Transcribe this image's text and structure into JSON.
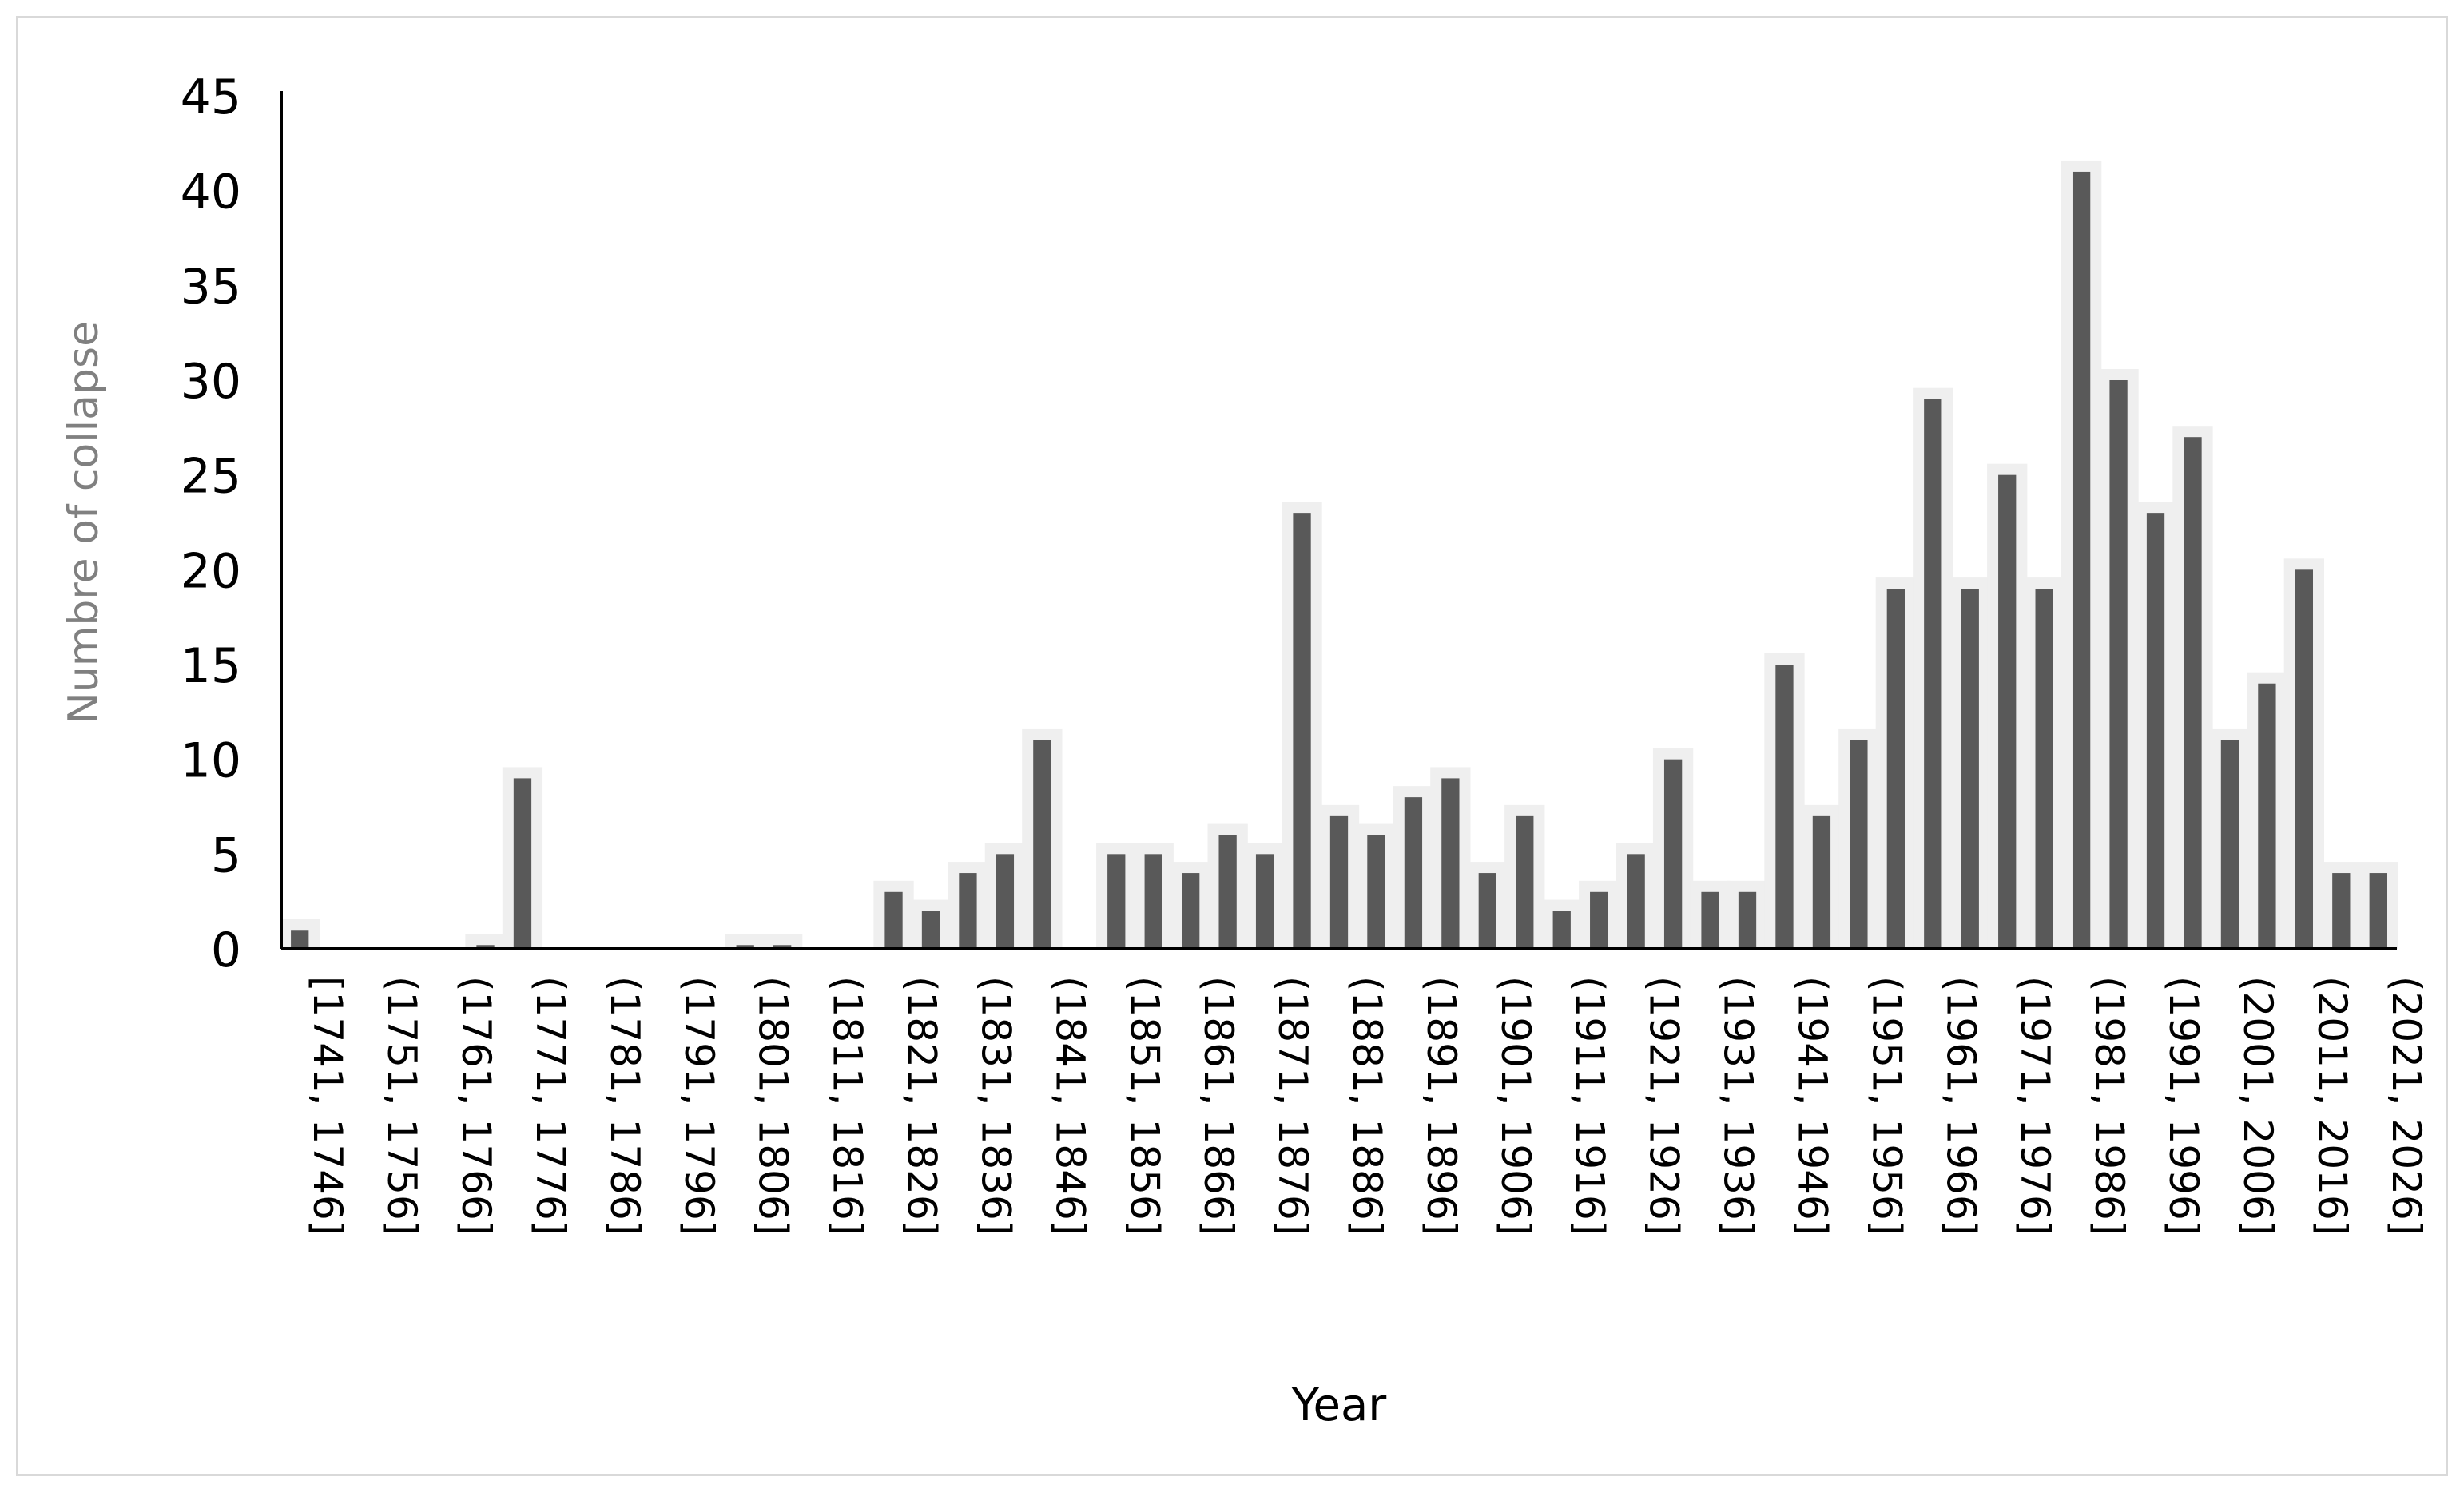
{
  "chart_data": {
    "type": "bar",
    "title": "",
    "xlabel": "Year",
    "ylabel": "Numbre of collapse",
    "ylim": [
      0,
      45
    ],
    "yticks": [
      0,
      5,
      10,
      15,
      20,
      25,
      30,
      35,
      40,
      45
    ],
    "grid": false,
    "legend": "none",
    "categories": [
      "[1741, 1746]",
      "(1746, 1751]",
      "(1751, 1756]",
      "(1756, 1761]",
      "(1761, 1766]",
      "(1766, 1771]",
      "(1771, 1776]",
      "(1776, 1781]",
      "(1781, 1786]",
      "(1786, 1791]",
      "(1791, 1796]",
      "(1796, 1801]",
      "(1801, 1806]",
      "(1806, 1811]",
      "(1811, 1816]",
      "(1816, 1821]",
      "(1821, 1826]",
      "(1826, 1831]",
      "(1831, 1836]",
      "(1836, 1841]",
      "(1841, 1846]",
      "(1846, 1851]",
      "(1851, 1856]",
      "(1856, 1861]",
      "(1861, 1866]",
      "(1866, 1871]",
      "(1871, 1876]",
      "(1876, 1881]",
      "(1881, 1886]",
      "(1886, 1891]",
      "(1891, 1896]",
      "(1896, 1901]",
      "(1901, 1906]",
      "(1906, 1911]",
      "(1911, 1916]",
      "(1916, 1921]",
      "(1921, 1926]",
      "(1926, 1931]",
      "(1931, 1936]",
      "(1936, 1941]",
      "(1941, 1946]",
      "(1946, 1951]",
      "(1951, 1956]",
      "(1956, 1961]",
      "(1961, 1966]",
      "(1966, 1971]",
      "(1971, 1976]",
      "(1976, 1981]",
      "(1981, 1986]",
      "(1986, 1991]",
      "(1991, 1996]",
      "(1996, 2001]",
      "(2001, 2006]",
      "(2006, 2011]",
      "(2011, 2016]",
      "(2016, 2021]",
      "(2021, 2026]"
    ],
    "visible_tick_labels": [
      "[1741, 1746]",
      "(1751, 1756]",
      "(1761, 1766]",
      "(1771, 1776]",
      "(1781, 1786]",
      "(1791, 1796]",
      "(1801, 1806]",
      "(1811, 1816]",
      "(1821, 1826]",
      "(1831, 1836]",
      "(1841, 1846]",
      "(1851, 1856]",
      "(1861, 1866]",
      "(1871, 1876]",
      "(1881, 1886]",
      "(1891, 1896]",
      "(1901, 1906]",
      "(1911, 1916]",
      "(1921, 1926]",
      "(1931, 1936]",
      "(1941, 1946]",
      "(1951, 1956]",
      "(1961, 1966]",
      "(1971, 1976]",
      "(1981, 1986]",
      "(1991, 1996]",
      "(2001, 2006]",
      "(2011, 2016]",
      "(2021, 2026]"
    ],
    "values": [
      1,
      0,
      0,
      0,
      0,
      0.2,
      9,
      0,
      0,
      0,
      0,
      0,
      0.2,
      0.2,
      0,
      0,
      3,
      2,
      4,
      5,
      11,
      0,
      5,
      5,
      4,
      6,
      5,
      23,
      7,
      6,
      8,
      9,
      4,
      7,
      2,
      3,
      5,
      10,
      3,
      3,
      15,
      7,
      11,
      19,
      29,
      19,
      25,
      19,
      41,
      30,
      23,
      27,
      11,
      14,
      20,
      4,
      4
    ],
    "colors": {
      "bar": "#595959",
      "bar_shadow": "#efefef",
      "axis": "#000000",
      "ylabel_text": "#808080",
      "tick_text": "#000000"
    }
  }
}
